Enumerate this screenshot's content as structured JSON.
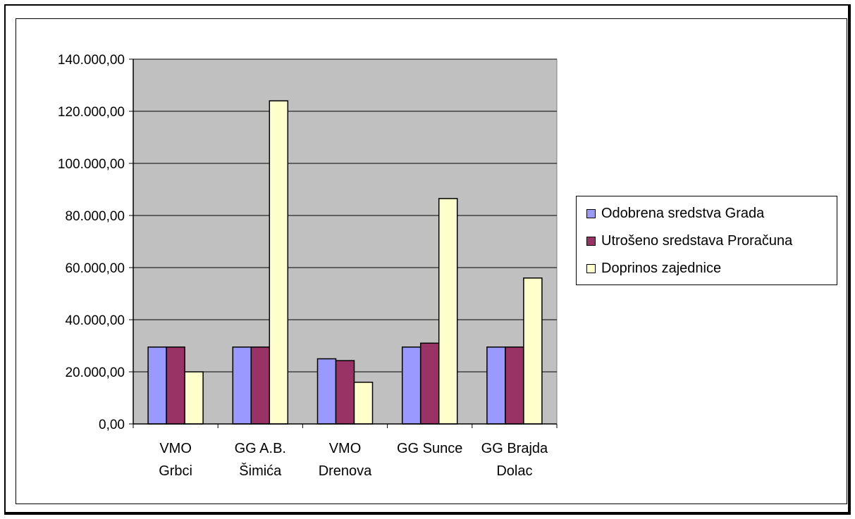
{
  "chart_data": {
    "type": "bar",
    "categories": [
      [
        "VMO",
        "Grbci"
      ],
      [
        "GG A.B.",
        "Šimića"
      ],
      [
        "VMO",
        "Drenova"
      ],
      [
        "GG Sunce",
        ""
      ],
      [
        "GG Brajda",
        "Dolac"
      ]
    ],
    "series": [
      {
        "name": "Odobrena sredstva Grada",
        "color": "#9999ff",
        "values": [
          29500,
          29500,
          25000,
          29500,
          29500
        ]
      },
      {
        "name": "Utrošeno sredstava Proračuna",
        "color": "#993366",
        "values": [
          29500,
          29500,
          24300,
          31000,
          29500
        ]
      },
      {
        "name": "Doprinos zajednice",
        "color": "#ffffcc",
        "values": [
          20000,
          124000,
          16000,
          86500,
          56000
        ]
      }
    ],
    "ylim": [
      0,
      140000
    ],
    "yticks": [
      "0,00",
      "20.000,00",
      "40.000,00",
      "60.000,00",
      "80.000,00",
      "100.000,00",
      "120.000,00",
      "140.000,00"
    ],
    "title": "",
    "xlabel": "",
    "ylabel": "",
    "grid": true,
    "plot_background": "#c0c0c0",
    "legend_position": "right"
  }
}
